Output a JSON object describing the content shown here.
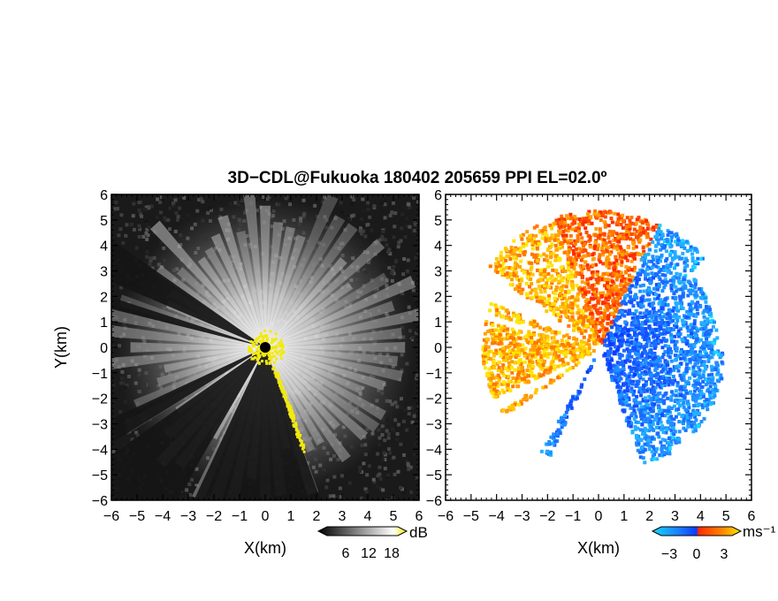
{
  "title": "3D−CDL@Fukuoka 180402 205659 PPI EL=02.0º",
  "chart_data": [
    {
      "type": "heatmap",
      "panel": "reflectivity",
      "xlabel": "X(km)",
      "ylabel": "Y(km)",
      "xlim": [
        -6,
        6
      ],
      "ylim": [
        -6,
        6
      ],
      "ticks": [
        -6,
        -5,
        -4,
        -3,
        -2,
        -1,
        0,
        1,
        2,
        3,
        4,
        5,
        6
      ],
      "tick_labels": [
        "−6",
        "−5",
        "−4",
        "−3",
        "−2",
        "−1",
        "0",
        "1",
        "2",
        "3",
        "4",
        "5",
        "6"
      ],
      "colorbar": {
        "unit": "dB",
        "ticks": [
          "6",
          "12",
          "18"
        ],
        "colors": [
          "#000000",
          "#ffffff",
          "#f4e400"
        ]
      },
      "blocked_sectors_deg": [
        [
          145,
          157
        ],
        [
          162,
          166
        ],
        [
          205,
          212
        ],
        [
          215,
          240
        ],
        [
          245,
          290
        ]
      ],
      "highlight_color": "#f2ea0c"
    },
    {
      "type": "heatmap",
      "panel": "radial-velocity",
      "xlabel": "X(km)",
      "ylabel": "",
      "xlim": [
        -6,
        6
      ],
      "ylim": [
        -6,
        6
      ],
      "ticks": [
        -6,
        -5,
        -4,
        -3,
        -2,
        -1,
        0,
        1,
        2,
        3,
        4,
        5,
        6
      ],
      "tick_labels": [
        "−6",
        "−5",
        "−4",
        "−3",
        "−2",
        "−1",
        "0",
        "1",
        "2",
        "3",
        "4",
        "5",
        "6"
      ],
      "colorbar": {
        "unit": "ms⁻¹",
        "ticks": [
          "−3",
          "0",
          "3"
        ],
        "colors": [
          "#18d8ff",
          "#0b3cff",
          "#ff2a00",
          "#ffe600"
        ]
      },
      "blocked_sectors_deg": [
        [
          145,
          157
        ],
        [
          162,
          166
        ],
        [
          205,
          212
        ],
        [
          215,
          240
        ],
        [
          245,
          290
        ]
      ]
    }
  ]
}
